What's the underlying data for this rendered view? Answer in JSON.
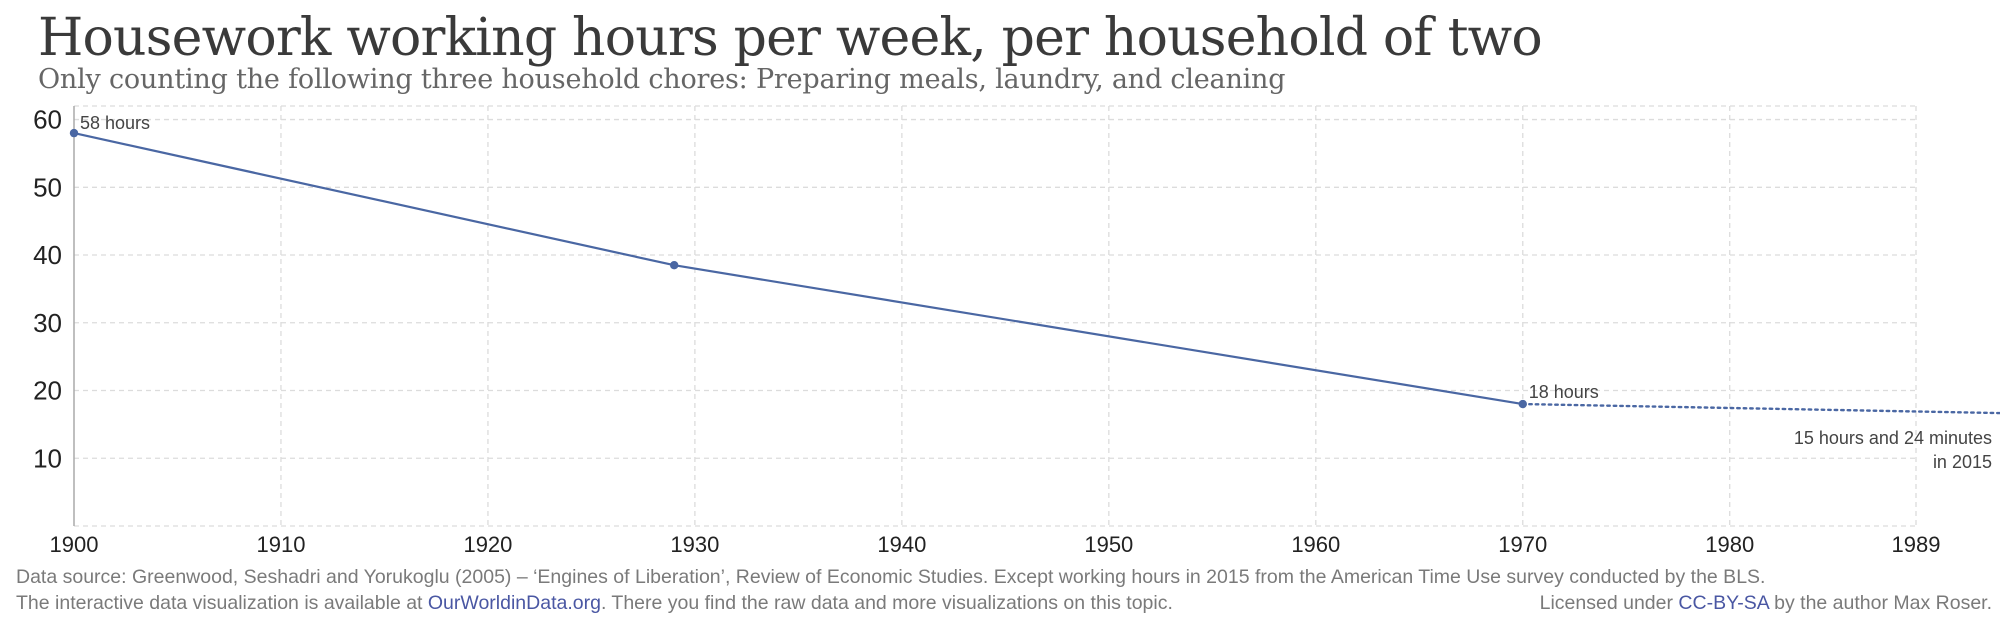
{
  "chart_data": {
    "type": "line",
    "title": "Housework working hours per week, per household of two",
    "subtitle": "Only counting the following three household chores: Preparing meals, laundry, and cleaning",
    "xlabel": "",
    "ylabel": "",
    "xlim": [
      1900,
      1989
    ],
    "ylim": [
      0,
      62
    ],
    "x_ticks": [
      1900,
      1910,
      1920,
      1930,
      1940,
      1950,
      1960,
      1970,
      1980,
      1989
    ],
    "y_ticks": [
      10,
      20,
      30,
      40,
      50,
      60
    ],
    "grid": true,
    "series": [
      {
        "name": "",
        "color": "#4a67a3",
        "points": [
          {
            "x": 1900,
            "y": 58
          },
          {
            "x": 1929,
            "y": 38.5
          },
          {
            "x": 1970,
            "y": 18
          }
        ]
      }
    ],
    "projection": {
      "style": "dotted",
      "color": "#4a67a3",
      "from": {
        "x": 1970,
        "y": 18
      },
      "to": {
        "x": 2015,
        "y": 15.4
      }
    },
    "annotations": [
      {
        "x": 1900,
        "y": 58,
        "text": "58 hours"
      },
      {
        "x": 1970,
        "y": 18,
        "text": "18 hours"
      },
      {
        "x": 1989,
        "y": 15.4,
        "text": "15 hours and 24 minutes",
        "text2": "in 2015"
      }
    ]
  },
  "footer": {
    "source": "Data source: Greenwood, Seshadri and Yorukoglu (2005) – ‘Engines of Liberation’, Review of Economic Studies. Except working hours in 2015 from the American Time Use survey conducted by the BLS.",
    "interactive_prefix": "The interactive data visualization is available at ",
    "interactive_link": "OurWorldinData.org",
    "interactive_suffix": ". There you find the raw data and more visualizations on this topic.",
    "license_prefix": "Licensed under ",
    "license_link": "CC-BY-SA",
    "license_suffix": " by the author Max Roser."
  }
}
